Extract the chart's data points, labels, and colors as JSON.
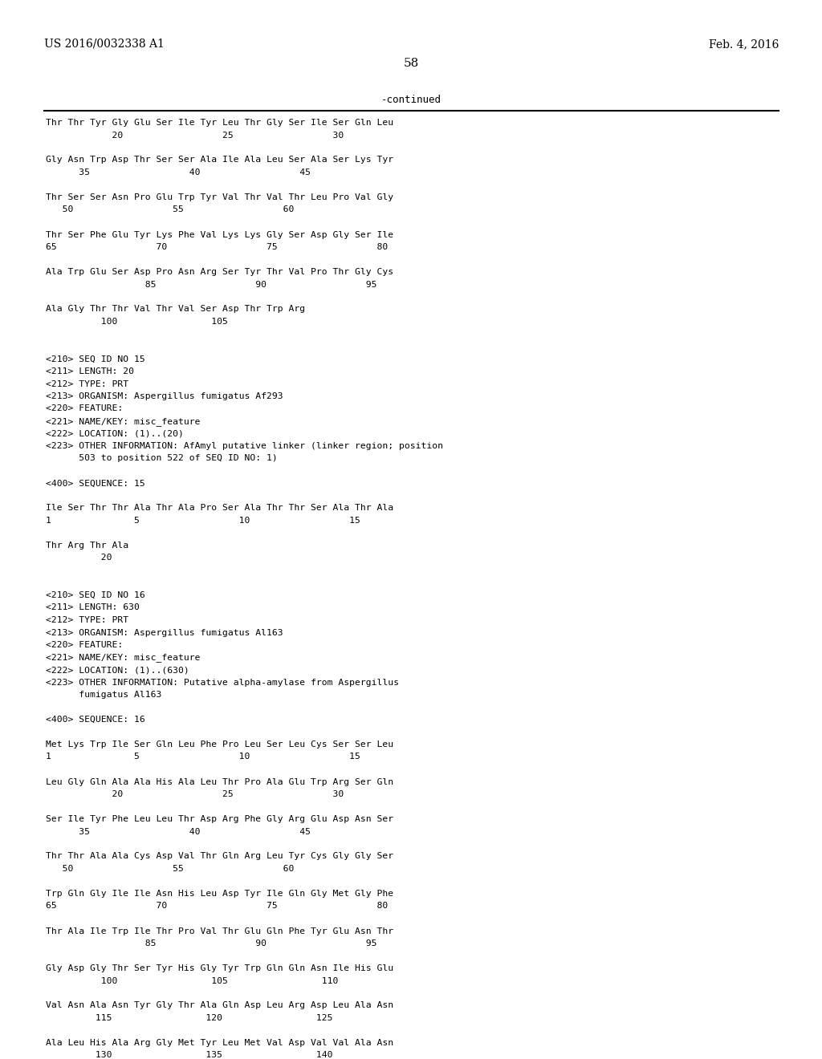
{
  "header_left": "US 2016/0032338 A1",
  "header_right": "Feb. 4, 2016",
  "page_number": "58",
  "continued_label": "-continued",
  "background_color": "#ffffff",
  "text_color": "#000000",
  "content": [
    "Thr Thr Tyr Gly Glu Ser Ile Tyr Leu Thr Gly Ser Ile Ser Gln Leu",
    "            20                  25                  30",
    "",
    "Gly Asn Trp Asp Thr Ser Ser Ala Ile Ala Leu Ser Ala Ser Lys Tyr",
    "      35                  40                  45",
    "",
    "Thr Ser Ser Asn Pro Glu Trp Tyr Val Thr Val Thr Leu Pro Val Gly",
    "   50                  55                  60",
    "",
    "Thr Ser Phe Glu Tyr Lys Phe Val Lys Lys Gly Ser Asp Gly Ser Ile",
    "65                  70                  75                  80",
    "",
    "Ala Trp Glu Ser Asp Pro Asn Arg Ser Tyr Thr Val Pro Thr Gly Cys",
    "                  85                  90                  95",
    "",
    "Ala Gly Thr Thr Val Thr Val Ser Asp Thr Trp Arg",
    "          100                 105",
    "",
    "",
    "<210> SEQ ID NO 15",
    "<211> LENGTH: 20",
    "<212> TYPE: PRT",
    "<213> ORGANISM: Aspergillus fumigatus Af293",
    "<220> FEATURE:",
    "<221> NAME/KEY: misc_feature",
    "<222> LOCATION: (1)..(20)",
    "<223> OTHER INFORMATION: AfAmyl putative linker (linker region; position",
    "      503 to position 522 of SEQ ID NO: 1)",
    "",
    "<400> SEQUENCE: 15",
    "",
    "Ile Ser Thr Thr Ala Thr Ala Pro Ser Ala Thr Thr Ser Ala Thr Ala",
    "1               5                  10                  15",
    "",
    "Thr Arg Thr Ala",
    "          20",
    "",
    "",
    "<210> SEQ ID NO 16",
    "<211> LENGTH: 630",
    "<212> TYPE: PRT",
    "<213> ORGANISM: Aspergillus fumigatus Al163",
    "<220> FEATURE:",
    "<221> NAME/KEY: misc_feature",
    "<222> LOCATION: (1)..(630)",
    "<223> OTHER INFORMATION: Putative alpha-amylase from Aspergillus",
    "      fumigatus Al163",
    "",
    "<400> SEQUENCE: 16",
    "",
    "Met Lys Trp Ile Ser Gln Leu Phe Pro Leu Ser Leu Cys Ser Ser Leu",
    "1               5                  10                  15",
    "",
    "Leu Gly Gln Ala Ala His Ala Leu Thr Pro Ala Glu Trp Arg Ser Gln",
    "            20                  25                  30",
    "",
    "Ser Ile Tyr Phe Leu Leu Thr Asp Arg Phe Gly Arg Glu Asp Asn Ser",
    "      35                  40                  45",
    "",
    "Thr Thr Ala Ala Cys Asp Val Thr Gln Arg Leu Tyr Cys Gly Gly Ser",
    "   50                  55                  60",
    "",
    "Trp Gln Gly Ile Ile Asn His Leu Asp Tyr Ile Gln Gly Met Gly Phe",
    "65                  70                  75                  80",
    "",
    "Thr Ala Ile Trp Ile Thr Pro Val Thr Glu Gln Phe Tyr Glu Asn Thr",
    "                  85                  90                  95",
    "",
    "Gly Asp Gly Thr Ser Tyr His Gly Tyr Trp Gln Gln Asn Ile His Glu",
    "          100                 105                 110",
    "",
    "Val Asn Ala Asn Tyr Gly Thr Ala Gln Asp Leu Arg Asp Leu Ala Asn",
    "         115                 120                 125",
    "",
    "Ala Leu His Ala Arg Gly Met Tyr Leu Met Val Asp Val Val Ala Asn",
    "         130                 135                 140"
  ]
}
